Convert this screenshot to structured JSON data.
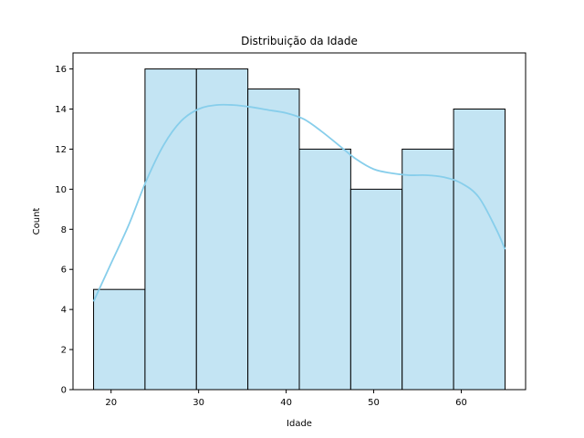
{
  "chart_data": {
    "type": "bar",
    "title": "Distribuição da Idade",
    "xlabel": "Idade",
    "ylabel": "Count",
    "xlim": [
      15.65,
      67.35
    ],
    "ylim": [
      0,
      16.8
    ],
    "xticks": [
      20,
      30,
      40,
      50,
      60
    ],
    "yticks": [
      0,
      2,
      4,
      6,
      8,
      10,
      12,
      14,
      16
    ],
    "grid": false,
    "bins": [
      {
        "start": 18.0,
        "end": 23.875,
        "count": 5
      },
      {
        "start": 23.875,
        "end": 29.75,
        "count": 16
      },
      {
        "start": 29.75,
        "end": 35.625,
        "count": 16
      },
      {
        "start": 35.625,
        "end": 41.5,
        "count": 15
      },
      {
        "start": 41.5,
        "end": 47.375,
        "count": 12
      },
      {
        "start": 47.375,
        "end": 53.25,
        "count": 10
      },
      {
        "start": 53.25,
        "end": 59.125,
        "count": 12
      },
      {
        "start": 59.125,
        "end": 65.0,
        "count": 14
      }
    ],
    "kde": {
      "x": [
        18,
        20,
        22,
        24,
        26,
        28,
        30,
        32,
        34,
        36,
        38,
        40,
        42,
        44,
        46,
        48,
        50,
        52,
        54,
        56,
        58,
        60,
        62,
        64,
        65
      ],
      "y": [
        4.4,
        6.3,
        8.2,
        10.4,
        12.2,
        13.4,
        14.0,
        14.2,
        14.2,
        14.1,
        13.95,
        13.8,
        13.5,
        12.9,
        12.2,
        11.5,
        11.0,
        10.8,
        10.7,
        10.7,
        10.6,
        10.3,
        9.6,
        8.0,
        7.0
      ]
    },
    "colors": {
      "bar_fill": "#c3e4f3",
      "bar_edge": "#000000",
      "kde_line": "#87ceeb"
    }
  }
}
